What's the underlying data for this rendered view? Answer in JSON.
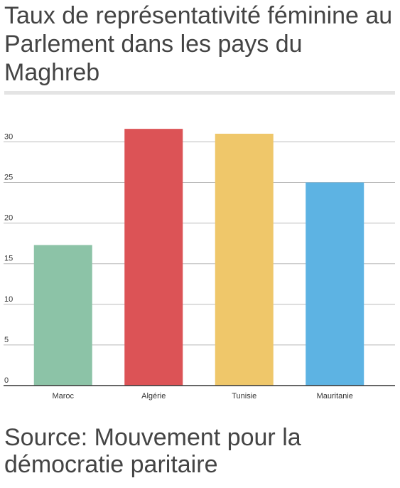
{
  "header": {
    "title": "Taux de représentativité féminine au Parlement dans les pays du Maghreb"
  },
  "footer": {
    "source": "Source: Mouvement pour la démocratie paritaire"
  },
  "chart_data": {
    "type": "bar",
    "title": "Taux de représentativité féminine au Parlement dans les pays du Maghreb",
    "xlabel": "",
    "ylabel": "",
    "categories": [
      "Maroc",
      "Algérie",
      "Tunisie",
      "Mauritanie"
    ],
    "values": [
      17.3,
      31.6,
      31.0,
      25.0
    ],
    "colors": [
      "#8cc3a7",
      "#dc5356",
      "#efc76a",
      "#5db3e3"
    ],
    "ylim": [
      0,
      32
    ],
    "yticks": [
      0,
      5,
      10,
      15,
      20,
      25,
      30
    ],
    "grid": true,
    "legend": "none"
  }
}
